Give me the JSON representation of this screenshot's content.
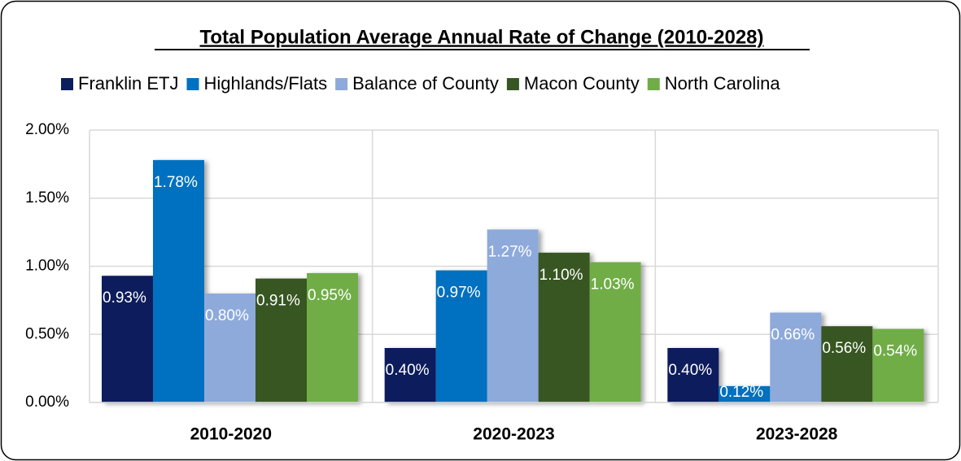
{
  "chart_data": {
    "type": "bar",
    "title": "Total Population Average Annual Rate of Change (2010-2028)",
    "categories": [
      "2010-2020",
      "2020-2023",
      "2023-2028"
    ],
    "series": [
      {
        "name": "Franklin ETJ",
        "color": "#0b1f5c",
        "values": [
          0.93,
          0.4,
          0.4
        ],
        "value_labels": [
          "0.93%",
          "0.40%",
          "0.40%"
        ]
      },
      {
        "name": "Highlands/Flats",
        "color": "#0070c0",
        "values": [
          1.78,
          0.97,
          0.12
        ],
        "value_labels": [
          "1.78%",
          "0.97%",
          "0.12%"
        ]
      },
      {
        "name": "Balance of County",
        "color": "#8eaadb",
        "values": [
          0.8,
          1.27,
          0.66
        ],
        "value_labels": [
          "0.80%",
          "1.27%",
          "0.66%"
        ]
      },
      {
        "name": "Macon County",
        "color": "#375623",
        "values": [
          0.91,
          1.1,
          0.56
        ],
        "value_labels": [
          "0.91%",
          "1.10%",
          "0.56%"
        ]
      },
      {
        "name": "North Carolina",
        "color": "#70ad47",
        "values": [
          0.95,
          1.03,
          0.54
        ],
        "value_labels": [
          "0.95%",
          "1.03%",
          "0.54%"
        ]
      }
    ],
    "ylim": [
      0,
      2
    ],
    "yticks": [
      {
        "value": 0,
        "label": "0.00%"
      },
      {
        "value": 0.5,
        "label": "0.50%"
      },
      {
        "value": 1,
        "label": "1.00%"
      },
      {
        "value": 1.5,
        "label": "1.50%"
      },
      {
        "value": 2,
        "label": "2.00%"
      }
    ],
    "grid": true,
    "legend": "top"
  }
}
